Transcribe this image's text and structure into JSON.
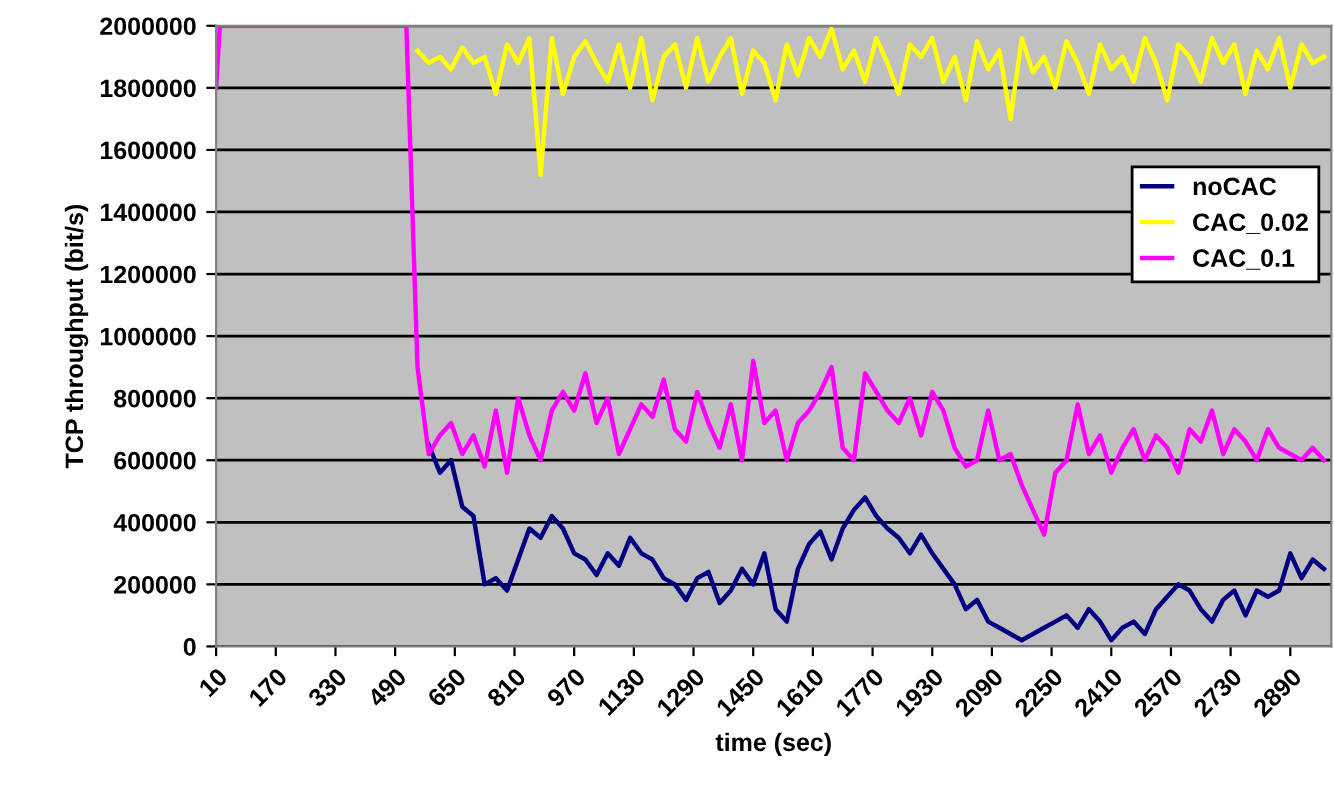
{
  "chart_data": {
    "type": "line",
    "xlabel": "time (sec)",
    "ylabel": "TCP throughput (bit/s)",
    "x": [
      10,
      20,
      520,
      550,
      580,
      610,
      640,
      670,
      700,
      730,
      760,
      790,
      820,
      850,
      880,
      910,
      940,
      970,
      1000,
      1030,
      1060,
      1090,
      1120,
      1150,
      1180,
      1210,
      1240,
      1270,
      1300,
      1330,
      1360,
      1390,
      1420,
      1450,
      1480,
      1510,
      1540,
      1570,
      1600,
      1630,
      1660,
      1690,
      1720,
      1750,
      1780,
      1810,
      1840,
      1870,
      1900,
      1930,
      1960,
      1990,
      2020,
      2050,
      2080,
      2110,
      2140,
      2170,
      2200,
      2230,
      2260,
      2290,
      2320,
      2350,
      2380,
      2410,
      2440,
      2470,
      2500,
      2530,
      2560,
      2590,
      2620,
      2650,
      2680,
      2710,
      2740,
      2770,
      2800,
      2830,
      2860,
      2890,
      2920,
      2950,
      2980
    ],
    "series": [
      {
        "name": "noCAC",
        "color": "#000080",
        "values": [
          null,
          null,
          null,
          null,
          650000,
          560000,
          600000,
          450000,
          420000,
          200000,
          220000,
          180000,
          280000,
          380000,
          350000,
          420000,
          380000,
          300000,
          280000,
          230000,
          300000,
          260000,
          350000,
          300000,
          280000,
          220000,
          200000,
          150000,
          220000,
          240000,
          140000,
          180000,
          250000,
          200000,
          300000,
          120000,
          80000,
          250000,
          330000,
          370000,
          280000,
          380000,
          440000,
          480000,
          420000,
          380000,
          350000,
          300000,
          360000,
          300000,
          250000,
          200000,
          120000,
          150000,
          80000,
          60000,
          40000,
          20000,
          40000,
          60000,
          80000,
          100000,
          60000,
          120000,
          80000,
          20000,
          60000,
          80000,
          40000,
          120000,
          160000,
          200000,
          180000,
          120000,
          80000,
          150000,
          180000,
          100000,
          180000,
          160000,
          180000,
          300000,
          220000,
          280000,
          250000
        ]
      },
      {
        "name": "CAC_0.02",
        "color": "#ffff00",
        "values": [
          null,
          null,
          null,
          1920000,
          1880000,
          1900000,
          1860000,
          1930000,
          1880000,
          1900000,
          1780000,
          1940000,
          1880000,
          1960000,
          1520000,
          1960000,
          1780000,
          1900000,
          1950000,
          1880000,
          1820000,
          1940000,
          1800000,
          1960000,
          1760000,
          1900000,
          1940000,
          1800000,
          1960000,
          1820000,
          1900000,
          1960000,
          1780000,
          1920000,
          1880000,
          1760000,
          1940000,
          1840000,
          1960000,
          1900000,
          1990000,
          1860000,
          1920000,
          1820000,
          1960000,
          1880000,
          1780000,
          1940000,
          1900000,
          1960000,
          1820000,
          1900000,
          1760000,
          1950000,
          1860000,
          1920000,
          1700000,
          1960000,
          1850000,
          1900000,
          1800000,
          1950000,
          1880000,
          1780000,
          1940000,
          1860000,
          1900000,
          1820000,
          1960000,
          1880000,
          1760000,
          1940000,
          1900000,
          1820000,
          1960000,
          1880000,
          1940000,
          1780000,
          1920000,
          1860000,
          1960000,
          1800000,
          1940000,
          1880000,
          1900000
        ]
      },
      {
        "name": "CAC_0.1",
        "color": "#ff00ff",
        "values": [
          1800000,
          2000000,
          2000000,
          900000,
          620000,
          680000,
          720000,
          620000,
          680000,
          580000,
          760000,
          560000,
          800000,
          680000,
          600000,
          760000,
          820000,
          760000,
          880000,
          720000,
          800000,
          620000,
          700000,
          780000,
          740000,
          860000,
          700000,
          660000,
          820000,
          720000,
          640000,
          780000,
          600000,
          920000,
          720000,
          760000,
          600000,
          720000,
          760000,
          820000,
          900000,
          640000,
          600000,
          880000,
          820000,
          760000,
          720000,
          800000,
          680000,
          820000,
          760000,
          640000,
          580000,
          600000,
          760000,
          600000,
          620000,
          520000,
          440000,
          360000,
          560000,
          600000,
          780000,
          620000,
          680000,
          560000,
          640000,
          700000,
          600000,
          680000,
          640000,
          560000,
          700000,
          660000,
          760000,
          620000,
          700000,
          660000,
          600000,
          700000,
          640000,
          620000,
          600000,
          640000,
          600000
        ]
      }
    ],
    "xlim": [
      10,
      3000
    ],
    "xticks": [
      10,
      170,
      330,
      490,
      650,
      810,
      970,
      1130,
      1290,
      1450,
      1610,
      1770,
      1930,
      2090,
      2250,
      2410,
      2570,
      2730,
      2890
    ],
    "ylim": [
      0,
      2000000
    ],
    "yticks": [
      0,
      200000,
      400000,
      600000,
      800000,
      1000000,
      1200000,
      1400000,
      1600000,
      1800000,
      2000000
    ],
    "grid": "y",
    "legend": "right",
    "marker": "none",
    "line_style": "solid"
  }
}
